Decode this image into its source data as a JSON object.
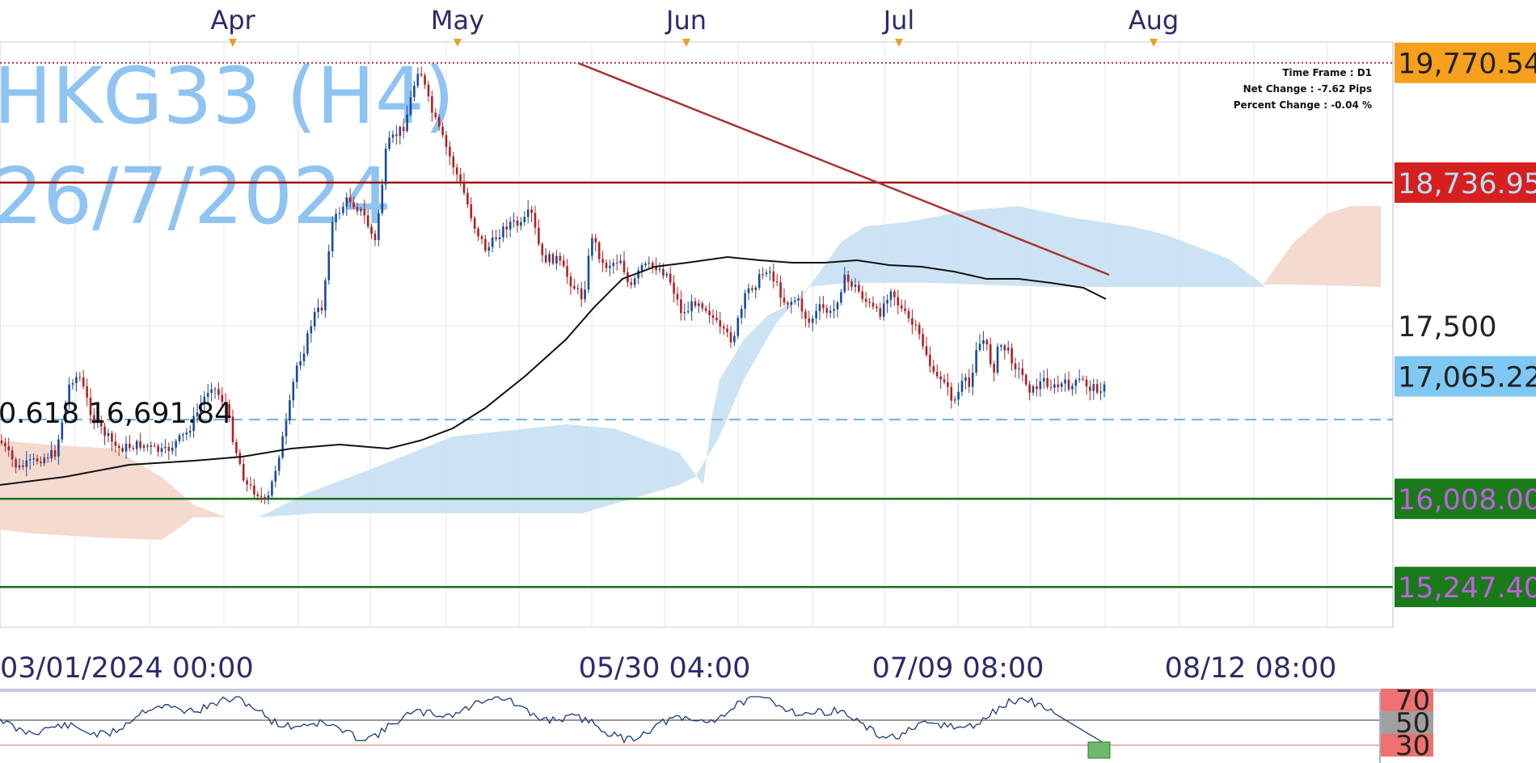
{
  "chart_data": {
    "type": "line",
    "symbol": "HKG33 (H4)",
    "date_label": "26/7/2024",
    "info": {
      "time_frame": "Time Frame : D1",
      "net_change": "Net Change : -7.62 Pips",
      "percent_change": "Percent Change : -0.04 %"
    },
    "month_labels": [
      "Apr",
      "May",
      "Jun",
      "Jul",
      "Aug"
    ],
    "date_labels": [
      "03/01/2024 00:00",
      "05/30 04:00",
      "07/09 08:00",
      "08/12 08:00"
    ],
    "ylim": [
      14900,
      19950
    ],
    "y_ticks": [
      17500
    ],
    "price_tags": [
      {
        "value": 19770.54,
        "label": "19,770.54",
        "bg": "#f7a01d",
        "fg": "#222222"
      },
      {
        "value": 18736.95,
        "label": "18,736.95",
        "bg": "#d61f1f",
        "fg": "#b8e0f5"
      },
      {
        "value": 17500,
        "label": "17,500",
        "bg": "#ffffff",
        "fg": "#222222"
      },
      {
        "value": 17065.22,
        "label": "17,065.22",
        "bg": "#7ec8f3",
        "fg": "#222222"
      },
      {
        "value": 16008.0,
        "label": "16,008.00",
        "bg": "#1a7a1a",
        "fg": "#c060e0"
      },
      {
        "value": 15247.4,
        "label": "15,247.40",
        "bg": "#1a7a1a",
        "fg": "#c060e0"
      }
    ],
    "levels": [
      {
        "value": 19770.54,
        "color": "#a83232",
        "style": "dotted"
      },
      {
        "value": 18736.95,
        "color": "#a01010",
        "style": "solid"
      },
      {
        "value": 16691.84,
        "color": "#6bb3e0",
        "style": "dashed"
      },
      {
        "value": 16008.0,
        "color": "#1a6e1a",
        "style": "solid"
      },
      {
        "value": 15247.4,
        "color": "#1a6e1a",
        "style": "solid"
      }
    ],
    "fib_label": "0.618 16,691.84",
    "rsi_labels": [
      "70",
      "50",
      "30"
    ],
    "rsi_label_colors": [
      "#f07070",
      "#a0a0a0",
      "#f07070"
    ],
    "colors": {
      "candle_up": "#1a4a9a",
      "candle_down": "#b02020",
      "ma": "#111111",
      "trendline": "#a83232",
      "cloud_bull": "#c9e2f2",
      "cloud_bear": "#f3d8cc",
      "axis_text": "#2b2b6b"
    }
  }
}
